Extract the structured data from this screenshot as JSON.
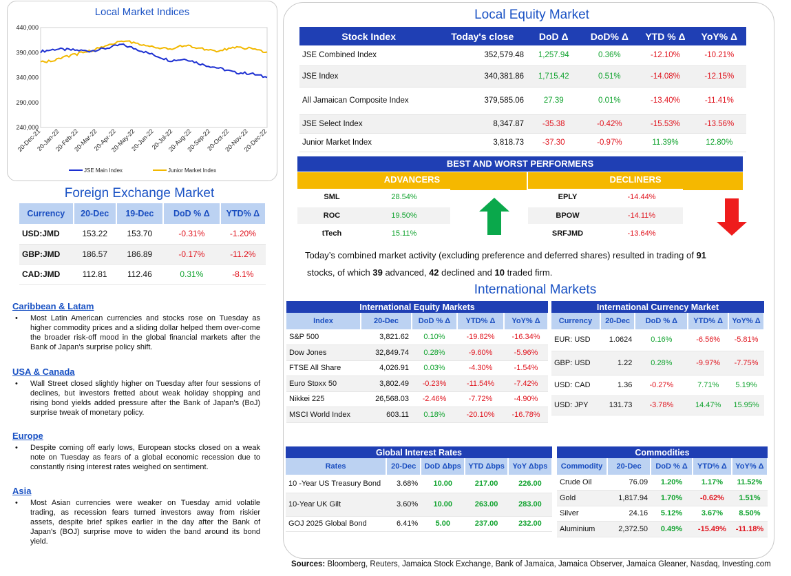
{
  "chart_data": {
    "type": "line",
    "title": "Local Market Indices",
    "x_ticks": [
      "20-Dec-21",
      "20-Jan-22",
      "20-Feb-22",
      "20-Mar-22",
      "20-Apr-22",
      "20-May-22",
      "20-Jun-22",
      "20-Jul-22",
      "20-Aug-22",
      "20-Sep-22",
      "20-Oct-22",
      "20-Nov-22",
      "20-Dec-22"
    ],
    "y_ticks": [
      "440,000",
      "390,000",
      "340,000",
      "290,000",
      "240,000"
    ],
    "ylim": [
      240000,
      440000
    ],
    "legend_position": "bottom",
    "colors": {
      "jse": "#1c2fd1",
      "junior": "#f2b800"
    },
    "series": [
      {
        "name": "JSE Main Index",
        "values": [
          392000,
          397000,
          395000,
          393000,
          398000,
          406000,
          396000,
          385000,
          374000,
          377000,
          366000,
          359000,
          350000,
          348000,
          340000
        ]
      },
      {
        "name": "Junior Market Index",
        "values": [
          370000,
          376000,
          385000,
          393000,
          402000,
          415000,
          407000,
          402000,
          397000,
          405000,
          397000,
          393000,
          401000,
          398000,
          391000
        ]
      }
    ]
  },
  "equity": {
    "title": "Local Equity Market",
    "headers": [
      "Stock Index",
      "Today's close",
      "DoD  Δ",
      "DoD% Δ",
      "YTD % Δ",
      "YoY% Δ"
    ],
    "rows": [
      {
        "name": "JSE Combined Index",
        "close": "352,579.48",
        "dod": "1,257.94",
        "dodp": "0.36%",
        "ytd": "-12.10%",
        "yoy": "-10.21%"
      },
      {
        "name": "JSE Index",
        "close": "340,381.86",
        "dod": "1,715.42",
        "dodp": "0.51%",
        "ytd": "-14.08%",
        "yoy": "-12.15%"
      },
      {
        "name": "All Jamaican Composite Index",
        "close": "379,585.06",
        "dod": "27.39",
        "dodp": "0.01%",
        "ytd": "-13.40%",
        "yoy": "-11.41%"
      },
      {
        "name": "JSE Select Index",
        "close": "8,347.87",
        "dod": "-35.38",
        "dodp": "-0.42%",
        "ytd": "-15.53%",
        "yoy": "-13.56%"
      },
      {
        "name": "Junior Market Index",
        "close": "3,818.73",
        "dod": "-37.30",
        "dodp": "-0.97%",
        "ytd": "11.39%",
        "yoy": "12.80%"
      }
    ]
  },
  "performers": {
    "title": "BEST AND WORST PERFORMERS",
    "advancers_label": "ADVANCERS",
    "decliners_label": "DECLINERS",
    "advancers": [
      {
        "sym": "SML",
        "pct": "28.54%"
      },
      {
        "sym": "ROC",
        "pct": "19.50%"
      },
      {
        "sym": "tTech",
        "pct": "15.11%"
      }
    ],
    "decliners": [
      {
        "sym": "EPLY",
        "pct": "-14.44%"
      },
      {
        "sym": "BPOW",
        "pct": "-14.11%"
      },
      {
        "sym": "SRFJMD",
        "pct": "-13.64%"
      }
    ]
  },
  "summary": {
    "p1": "Today’s combined market activity (excluding preference and deferred shares) resulted in trading of ",
    "n1": "91",
    "p2": "stocks, of which ",
    "n2": "39",
    "p3": " advanced, ",
    "n3": "42",
    "p4": " declined and ",
    "n4": "10",
    "p5": " traded firm."
  },
  "fx": {
    "title": "Foreign Exchange Market",
    "headers": [
      "Currency",
      "20-Dec",
      "19-Dec",
      "DoD % Δ",
      "YTD% Δ"
    ],
    "rows": [
      {
        "cur": "USD:JMD",
        "d20": "153.22",
        "d19": "153.70",
        "dod": "-0.31%",
        "ytd": "-1.20%"
      },
      {
        "cur": "GBP:JMD",
        "d20": "186.57",
        "d19": "186.89",
        "dod": "-0.17%",
        "ytd": "-11.2%"
      },
      {
        "cur": "CAD:JMD",
        "d20": "112.81",
        "d19": "112.46",
        "dod": "0.31%",
        "ytd": "-8.1%"
      }
    ]
  },
  "news": [
    {
      "heading": "Caribbean & Latam",
      "text": "Most Latin American currencies and stocks rose on Tuesday as higher commodity prices and a sliding dollar helped them over-come the broader risk-off mood in the global financial markets after the Bank of Japan's surprise policy shift."
    },
    {
      "heading": "USA & Canada",
      "text": "Wall Street closed slightly higher on Tuesday after four sessions of declines, but investors fretted about weak holiday shopping and rising bond yields added pressure after the Bank of Japan's (BoJ) surprise tweak of monetary policy."
    },
    {
      "heading": "Europe",
      "text": "Despite coming off early lows, European stocks closed on a weak note on Tuesday as fears of a global economic recession due to constantly rising interest rates weighed on sentiment."
    },
    {
      "heading": "Asia",
      "text": "Most Asian currencies were weaker on Tuesday amid volatile trading, as recession fears turned investors away from riskier assets, despite brief spikes earlier in the day after the Bank of Japan's (BOJ) surprise move to widen the band around its bond yield."
    }
  ],
  "intl_title": "International Markets",
  "intl_equity": {
    "title": "International Equity Markets",
    "headers": [
      "Index",
      "20-Dec",
      "DoD % Δ",
      "YTD% Δ",
      "YoY% Δ"
    ],
    "rows": [
      {
        "name": "S&P 500",
        "v": "3,821.62",
        "dod": "0.10%",
        "ytd": "-19.82%",
        "yoy": "-16.34%"
      },
      {
        "name": "Dow Jones",
        "v": "32,849.74",
        "dod": "0.28%",
        "ytd": "-9.60%",
        "yoy": "-5.96%"
      },
      {
        "name": "FTSE All Share",
        "v": "4,026.91",
        "dod": "0.03%",
        "ytd": "-4.30%",
        "yoy": "-1.54%"
      },
      {
        "name": "Euro Stoxx 50",
        "v": "3,802.49",
        "dod": "-0.23%",
        "ytd": "-11.54%",
        "yoy": "-7.42%"
      },
      {
        "name": "Nikkei 225",
        "v": "26,568.03",
        "dod": "-2.46%",
        "ytd": "-7.72%",
        "yoy": "-4.90%"
      },
      {
        "name": "MSCI World Index",
        "v": "603.11",
        "dod": "0.18%",
        "ytd": "-20.10%",
        "yoy": "-16.78%"
      }
    ]
  },
  "intl_currency": {
    "title": "International Currency Market",
    "headers": [
      "Currency",
      "20-Dec",
      "DoD % Δ",
      "YTD% Δ",
      "YoY% Δ"
    ],
    "rows": [
      {
        "name": "EUR: USD",
        "v": "1.0624",
        "dod": "0.16%",
        "ytd": "-6.56%",
        "yoy": "-5.81%"
      },
      {
        "name": "GBP: USD",
        "v": "1.22",
        "dod": "0.28%",
        "ytd": "-9.97%",
        "yoy": "-7.75%"
      },
      {
        "name": "USD: CAD",
        "v": "1.36",
        "dod": "-0.27%",
        "ytd": "7.71%",
        "yoy": "5.19%"
      },
      {
        "name": "USD: JPY",
        "v": "131.73",
        "dod": "-3.78%",
        "ytd": "14.47%",
        "yoy": "15.95%"
      }
    ]
  },
  "rates": {
    "title": "Global Interest Rates",
    "headers": [
      "Rates",
      "20-Dec",
      "DoD Δbps",
      "YTD Δbps",
      "YoY Δbps"
    ],
    "rows": [
      {
        "name": "10 -Year US Treasury Bond",
        "v": "3.68%",
        "dod": "10.00",
        "ytd": "217.00",
        "yoy": "226.00"
      },
      {
        "name": "10-Year UK Gilt",
        "v": "3.60%",
        "dod": "10.00",
        "ytd": "263.00",
        "yoy": "283.00"
      },
      {
        "name": "GOJ 2025 Global Bond",
        "v": "6.41%",
        "dod": "5.00",
        "ytd": "237.00",
        "yoy": "232.00"
      }
    ]
  },
  "commodities": {
    "title": "Commodities",
    "headers": [
      "Commodity",
      "20-Dec",
      "DoD % Δ",
      "YTD% Δ",
      "YoY% Δ"
    ],
    "rows": [
      {
        "name": "Crude Oil",
        "v": "76.09",
        "dod": "1.20%",
        "ytd": "1.17%",
        "yoy": "11.52%"
      },
      {
        "name": "Gold",
        "v": "1,817.94",
        "dod": "1.70%",
        "ytd": "-0.62%",
        "yoy": "1.51%"
      },
      {
        "name": "Silver",
        "v": "24.16",
        "dod": "5.12%",
        "ytd": "3.67%",
        "yoy": "8.50%"
      },
      {
        "name": "Aluminium",
        "v": "2,372.50",
        "dod": "0.49%",
        "ytd": "-15.49%",
        "yoy": "-11.18%"
      }
    ]
  },
  "sources": {
    "label": "Sources:",
    "text": " Bloomberg, Reuters, Jamaica Stock Exchange, Bank of Jamaica, Jamaica Observer, Jamaica Gleaner, Nasdaq, Investing.com"
  }
}
